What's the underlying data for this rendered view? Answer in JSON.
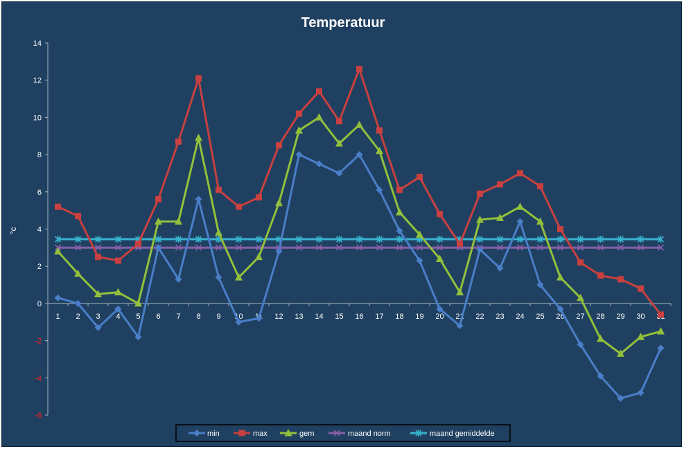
{
  "chart_data": {
    "type": "line",
    "title": "Temperatuur",
    "xlabel": "",
    "ylabel": "°c",
    "ylim": [
      -6,
      14
    ],
    "yticks": [
      14,
      12,
      10,
      8,
      6,
      4,
      2,
      0,
      -2,
      -4,
      -6
    ],
    "ytick_labels": [
      "14",
      "12",
      "10",
      "8",
      "6",
      "4",
      "2",
      "0",
      "-2",
      "-4",
      "-6"
    ],
    "x": [
      "1",
      "2",
      "3",
      "4",
      "5",
      "6",
      "7",
      "8",
      "9",
      "10",
      "11",
      "12",
      "13",
      "14",
      "15",
      "16",
      "17",
      "18",
      "19",
      "20",
      "21",
      "22",
      "23",
      "24",
      "25",
      "26",
      "27",
      "28",
      "29",
      "30",
      "31"
    ],
    "grid": false,
    "legend_position": "bottom",
    "series": [
      {
        "name": "min",
        "color": "#4a7ec8",
        "marker": "diamond",
        "values": [
          0.3,
          0.0,
          -1.3,
          -0.3,
          -1.8,
          3.0,
          1.3,
          5.6,
          1.4,
          -1.0,
          -0.8,
          2.8,
          8.0,
          7.5,
          7.0,
          8.0,
          6.1,
          3.9,
          2.3,
          -0.3,
          -1.2,
          2.9,
          1.9,
          4.4,
          1.0,
          -0.3,
          -2.2,
          -3.9,
          -5.1,
          -4.8,
          -2.4
        ]
      },
      {
        "name": "max",
        "color": "#c84040",
        "marker": "square",
        "values": [
          5.2,
          4.7,
          2.5,
          2.3,
          3.2,
          5.6,
          8.7,
          12.1,
          6.1,
          5.2,
          5.7,
          8.5,
          10.2,
          11.4,
          9.8,
          12.6,
          9.3,
          6.1,
          6.8,
          4.8,
          3.2,
          5.9,
          6.4,
          7.0,
          6.3,
          4.0,
          2.2,
          1.5,
          1.3,
          0.8,
          -0.6
        ]
      },
      {
        "name": "gem",
        "color": "#92c03c",
        "marker": "triangle",
        "values": [
          2.8,
          1.6,
          0.5,
          0.6,
          0.0,
          4.4,
          4.4,
          8.9,
          3.8,
          1.4,
          2.5,
          5.4,
          9.3,
          10.0,
          8.6,
          9.6,
          8.2,
          4.9,
          3.7,
          2.4,
          0.6,
          4.5,
          4.6,
          5.2,
          4.4,
          1.4,
          0.3,
          -1.9,
          -2.7,
          -1.8,
          -1.5
        ]
      },
      {
        "name": "maand norm",
        "color": "#8860a8",
        "marker": "x",
        "values": [
          3.0,
          3.0,
          3.0,
          3.0,
          3.0,
          3.0,
          3.0,
          3.0,
          3.0,
          3.0,
          3.0,
          3.0,
          3.0,
          3.0,
          3.0,
          3.0,
          3.0,
          3.0,
          3.0,
          3.0,
          3.0,
          3.0,
          3.0,
          3.0,
          3.0,
          3.0,
          3.0,
          3.0,
          3.0,
          3.0,
          3.0
        ]
      },
      {
        "name": "maand gemiddelde",
        "color": "#38b4d0",
        "marker": "star",
        "values": [
          3.45,
          3.45,
          3.45,
          3.45,
          3.45,
          3.45,
          3.45,
          3.45,
          3.45,
          3.45,
          3.45,
          3.45,
          3.45,
          3.45,
          3.45,
          3.45,
          3.45,
          3.45,
          3.45,
          3.45,
          3.45,
          3.45,
          3.45,
          3.45,
          3.45,
          3.45,
          3.45,
          3.45,
          3.45,
          3.45,
          3.45
        ]
      }
    ]
  }
}
